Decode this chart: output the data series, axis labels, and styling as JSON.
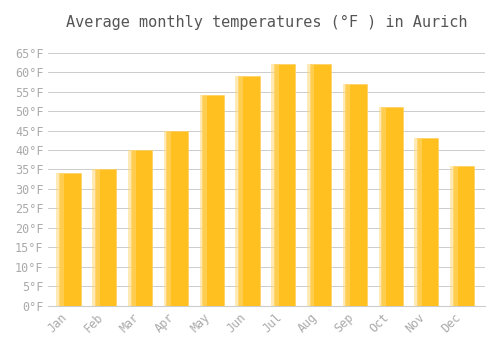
{
  "title": "Average monthly temperatures (°F ) in Aurich",
  "months": [
    "Jan",
    "Feb",
    "Mar",
    "Apr",
    "May",
    "Jun",
    "Jul",
    "Aug",
    "Sep",
    "Oct",
    "Nov",
    "Dec"
  ],
  "values": [
    34,
    35,
    40,
    45,
    54,
    59,
    62,
    62,
    57,
    51,
    43,
    36
  ],
  "bar_color_face": "#FFC020",
  "bar_color_edge": "#FFD060",
  "background_color": "#FFFFFF",
  "grid_color": "#CCCCCC",
  "tick_label_color": "#AAAAAA",
  "title_color": "#555555",
  "ylim": [
    0,
    68
  ],
  "yticks": [
    0,
    5,
    10,
    15,
    20,
    25,
    30,
    35,
    40,
    45,
    50,
    55,
    60,
    65
  ],
  "title_fontsize": 11,
  "tick_fontsize": 8.5
}
